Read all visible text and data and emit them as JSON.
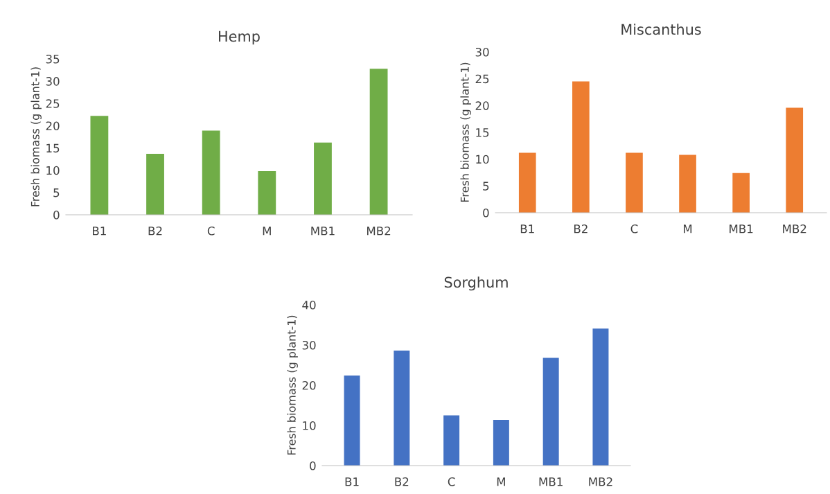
{
  "chart_data": [
    {
      "type": "bar",
      "title": "Hemp",
      "ylabel": "Fresh biomass (g plant-1)",
      "categories": [
        "B1",
        "B2",
        "C",
        "M",
        "MB1",
        "MB2"
      ],
      "values": [
        22.2,
        13.7,
        18.9,
        9.8,
        16.2,
        32.8
      ],
      "color": "#70ad47",
      "ylim": [
        0,
        35
      ],
      "yticks": [
        0,
        5,
        10,
        15,
        20,
        25,
        30,
        35
      ],
      "grid": false
    },
    {
      "type": "bar",
      "title": "Miscanthus",
      "ylabel": "Fresh biomass (g plant-1)",
      "categories": [
        "B1",
        "B2",
        "C",
        "M",
        "MB1",
        "MB2"
      ],
      "values": [
        11.2,
        24.5,
        11.2,
        10.8,
        7.4,
        19.6
      ],
      "color": "#ed7d31",
      "ylim": [
        0,
        30
      ],
      "yticks": [
        0,
        5,
        10,
        15,
        20,
        25,
        30
      ],
      "grid": false
    },
    {
      "type": "bar",
      "title": "Sorghum",
      "ylabel": "Fresh biomass (g plant-1)",
      "categories": [
        "B1",
        "B2",
        "C",
        "M",
        "MB1",
        "MB2"
      ],
      "values": [
        22.4,
        28.6,
        12.5,
        11.4,
        26.8,
        34.1
      ],
      "color": "#4472c4",
      "ylim": [
        0,
        40
      ],
      "yticks": [
        0,
        10,
        20,
        30,
        40
      ],
      "grid": false
    }
  ]
}
